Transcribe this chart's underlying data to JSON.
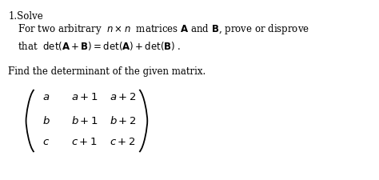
{
  "title_line": "1.Solve",
  "line1": "For two arbitrary  $n\\times n$  matrices $\\mathbf{A}$ and $\\mathbf{B}$, prove or disprove",
  "line2": "that  $\\det(\\mathbf{A}+\\mathbf{B}) = \\det(\\mathbf{A})+\\det(\\mathbf{B})$ .",
  "line3": "Find the determinant of the given matrix.",
  "matrix_row1": "$a$      $a+1$   $a+2$",
  "matrix_row2": "$b$      $b+1$   $b+2$",
  "matrix_row3": "$c$      $c+1$   $c+2$",
  "bg_color": "#ffffff",
  "text_color": "#000000",
  "fontsize_title": 8.5,
  "fontsize_body": 8.5,
  "fontsize_matrix": 9.5
}
